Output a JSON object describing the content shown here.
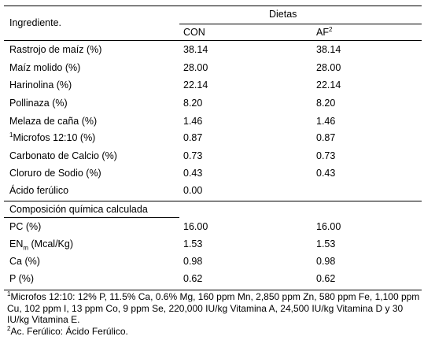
{
  "header": {
    "ingredient_label": "Ingrediente.",
    "group_label": "Dietas",
    "col_con": "CON",
    "col_af": "AF",
    "col_af_sup": "2"
  },
  "rows": [
    {
      "sup": "",
      "name": "Rastrojo de maíz (%)",
      "con": "38.14",
      "af": "38.14"
    },
    {
      "sup": "",
      "name": "Maíz molido (%)",
      "con": "28.00",
      "af": "28.00"
    },
    {
      "sup": "",
      "name": "Harinolina (%)",
      "con": "22.14",
      "af": "22.14"
    },
    {
      "sup": "",
      "name": "Pollinaza (%)",
      "con": "8.20",
      "af": "8.20"
    },
    {
      "sup": "",
      "name": "Melaza de caña (%)",
      "con": "1.46",
      "af": "1.46"
    },
    {
      "sup": "1",
      "name": "Microfos 12:10 (%)",
      "con": "0.87",
      "af": "0.87"
    },
    {
      "sup": "",
      "name": "Carbonato de Calcio (%)",
      "con": "0.73",
      "af": "0.73"
    },
    {
      "sup": "",
      "name": "Cloruro de Sodio (%)",
      "con": "0.43",
      "af": "0.43"
    },
    {
      "sup": "",
      "name": "Ácido ferúlico",
      "con": "0.00",
      "af": ""
    }
  ],
  "composition": {
    "title": "Composición química calculada",
    "rows": [
      {
        "name": "PC (%)",
        "sub": "",
        "name_after": "",
        "con": "16.00",
        "af": "16.00"
      },
      {
        "name": "EN",
        "sub": "m",
        "name_after": " (Mcal/Kg)",
        "con": "1.53",
        "af": "1.53"
      },
      {
        "name": "Ca (%)",
        "sub": "",
        "name_after": "",
        "con": "0.98",
        "af": "0.98"
      },
      {
        "name": "P (%)",
        "sub": "",
        "name_after": "",
        "con": "0.62",
        "af": "0.62"
      }
    ]
  },
  "footnotes": {
    "note1_sup": "1",
    "note1": "Microfos 12:10: 12% P, 11.5% Ca, 0.6% Mg, 160 ppm Mn, 2,850 ppm Zn, 580 ppm Fe, 1,100 ppm Cu, 102 ppm I, 13 ppm Co, 9 ppm Se, 220,000 IU/kg Vitamina A, 24,500 IU/kg Vitamina D y 30 IU/kg Vitamina E.",
    "note2_sup": "2",
    "note2": "Ac. Ferúlico: Ácido Ferúlico."
  }
}
